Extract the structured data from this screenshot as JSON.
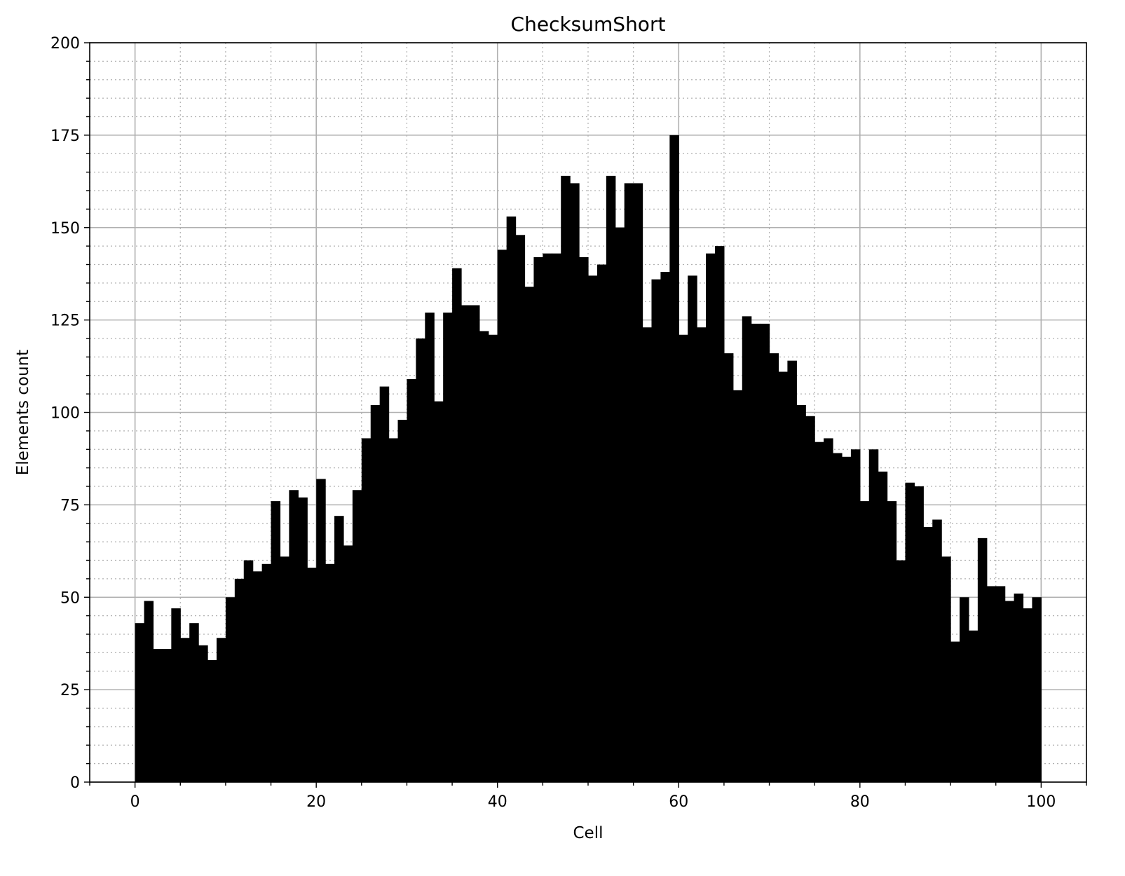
{
  "chart_data": {
    "type": "bar",
    "title": "ChecksumShort",
    "xlabel": "Cell",
    "ylabel": "Elements count",
    "xlim": [
      -5,
      105
    ],
    "ylim": [
      0,
      200
    ],
    "x_ticks": [
      0,
      20,
      40,
      60,
      80,
      100
    ],
    "y_ticks": [
      0,
      25,
      50,
      75,
      100,
      125,
      150,
      175,
      200
    ],
    "x_minor_step": 5,
    "y_minor_step": 5,
    "grid": true,
    "bar_color": "#000000",
    "bin_start": 0,
    "bin_width": 1,
    "values": [
      43,
      49,
      36,
      36,
      47,
      39,
      43,
      37,
      33,
      39,
      50,
      55,
      60,
      57,
      59,
      76,
      61,
      79,
      77,
      58,
      82,
      59,
      72,
      64,
      79,
      93,
      102,
      107,
      93,
      98,
      109,
      120,
      127,
      103,
      127,
      139,
      129,
      129,
      122,
      121,
      144,
      153,
      148,
      134,
      142,
      143,
      143,
      164,
      162,
      142,
      137,
      140,
      164,
      150,
      162,
      162,
      123,
      136,
      138,
      175,
      121,
      137,
      123,
      143,
      145,
      116,
      106,
      126,
      124,
      124,
      116,
      111,
      114,
      102,
      99,
      92,
      93,
      89,
      88,
      90,
      76,
      90,
      84,
      76,
      60,
      81,
      80,
      69,
      71,
      61,
      38,
      50,
      41,
      66,
      53,
      53,
      49,
      51,
      47,
      50
    ]
  }
}
